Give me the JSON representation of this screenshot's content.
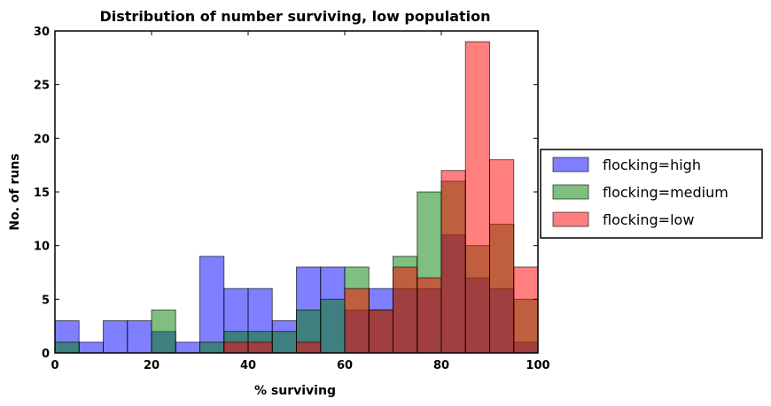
{
  "chart_data": {
    "type": "bar",
    "title": "Distribution of number surviving, low population",
    "xlabel": "% surviving",
    "ylabel": "No. of runs",
    "xlim": [
      0,
      100
    ],
    "ylim": [
      0,
      30
    ],
    "xticks": [
      0,
      20,
      40,
      60,
      80,
      100
    ],
    "yticks": [
      0,
      5,
      10,
      15,
      20,
      25,
      30
    ],
    "bin_width": 5,
    "grid": false,
    "legend_position": "right",
    "series": [
      {
        "name": "flocking=high",
        "color": "#0000ff",
        "bins": [
          [
            0,
            3
          ],
          [
            5,
            1
          ],
          [
            10,
            3
          ],
          [
            15,
            3
          ],
          [
            20,
            2
          ],
          [
            25,
            1
          ],
          [
            30,
            9
          ],
          [
            35,
            6
          ],
          [
            40,
            6
          ],
          [
            45,
            3
          ],
          [
            50,
            8
          ],
          [
            55,
            8
          ],
          [
            60,
            4
          ],
          [
            65,
            6
          ],
          [
            70,
            6
          ],
          [
            75,
            6
          ],
          [
            80,
            11
          ],
          [
            85,
            7
          ],
          [
            90,
            6
          ],
          [
            95,
            1
          ]
        ]
      },
      {
        "name": "flocking=medium",
        "color": "#008000",
        "bins": [
          [
            0,
            1
          ],
          [
            20,
            4
          ],
          [
            30,
            1
          ],
          [
            35,
            2
          ],
          [
            40,
            2
          ],
          [
            45,
            2
          ],
          [
            50,
            4
          ],
          [
            55,
            5
          ],
          [
            60,
            8
          ],
          [
            65,
            4
          ],
          [
            70,
            9
          ],
          [
            75,
            15
          ],
          [
            80,
            16
          ],
          [
            85,
            10
          ],
          [
            90,
            12
          ],
          [
            95,
            5
          ]
        ]
      },
      {
        "name": "flocking=low",
        "color": "#ff0000",
        "bins": [
          [
            35,
            1
          ],
          [
            40,
            1
          ],
          [
            50,
            1
          ],
          [
            60,
            6
          ],
          [
            65,
            4
          ],
          [
            70,
            8
          ],
          [
            75,
            7
          ],
          [
            80,
            17
          ],
          [
            85,
            29
          ],
          [
            90,
            18
          ],
          [
            95,
            8
          ]
        ]
      }
    ]
  }
}
